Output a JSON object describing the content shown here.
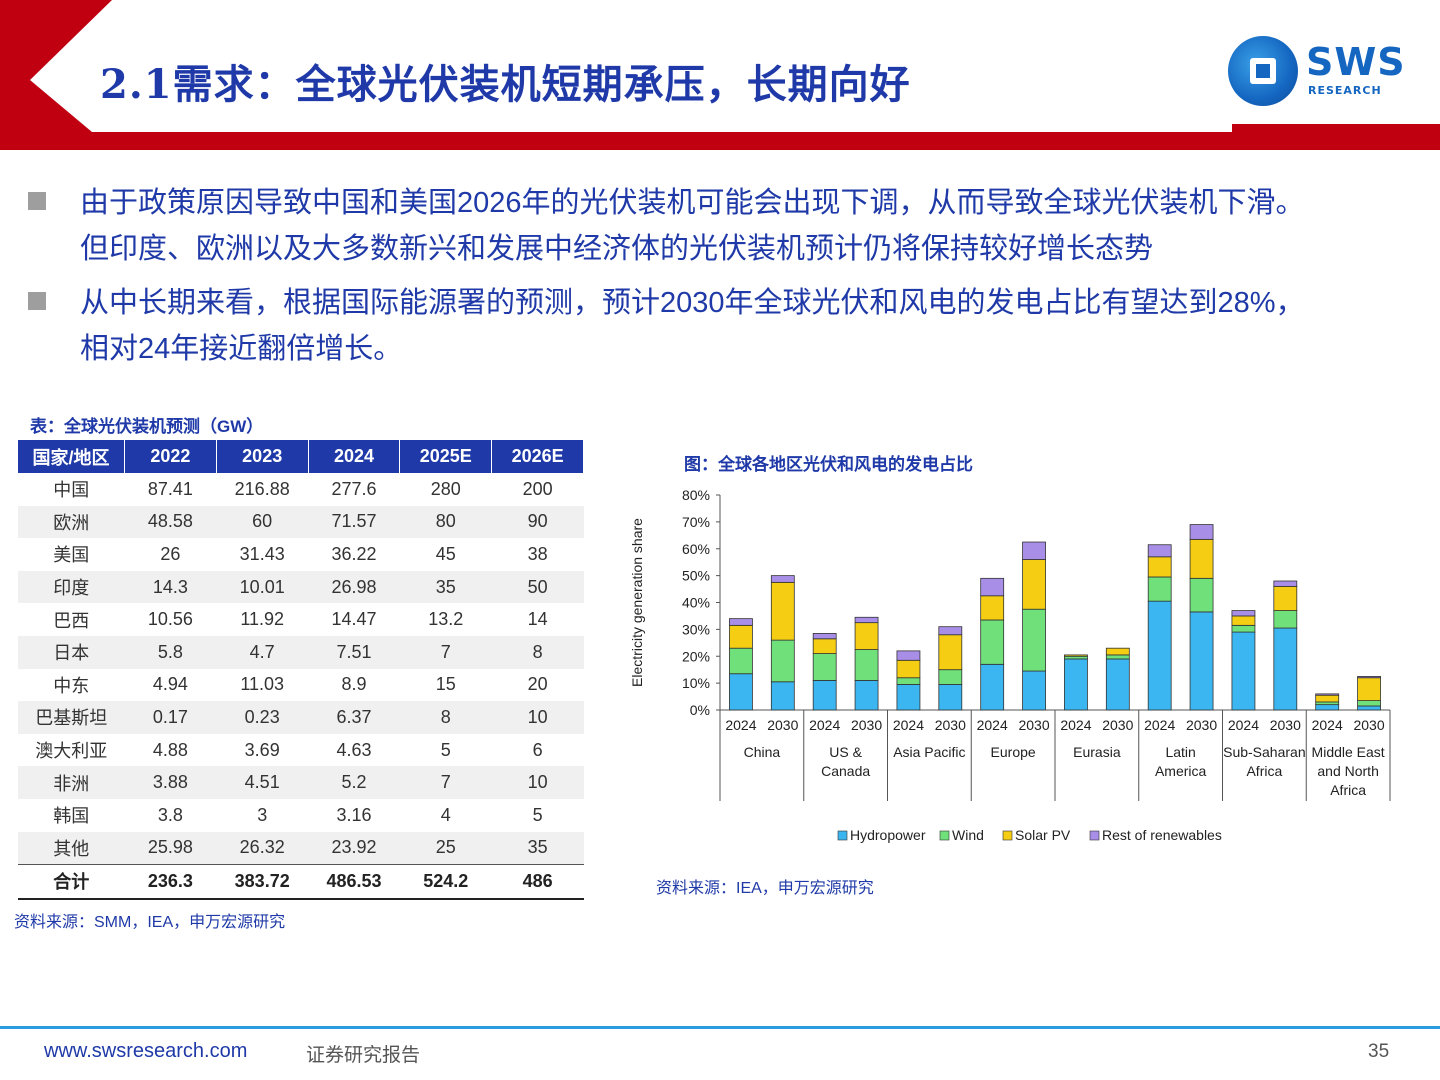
{
  "header": {
    "title": "2.1需求：全球光伏装机短期承压，长期向好",
    "logo_text": "SWS",
    "logo_sub": "RESEARCH",
    "accent_red": "#c00010",
    "accent_blue": "#1f3aa8"
  },
  "bullets": [
    {
      "lines": [
        "由于政策原因导致中国和美国2026年的光伏装机可能会出现下调，从而导致全球光伏装机下滑。",
        "但印度、欧洲以及大多数新兴和发展中经济体的光伏装机预计仍将保持较好增长态势"
      ]
    },
    {
      "lines": [
        "从中长期来看，根据国际能源署的预测，预计2030年全球光伏和风电的发电占比有望达到28%，",
        "相对24年接近翻倍增长。"
      ]
    }
  ],
  "table": {
    "title": "表：全球光伏装机预测（GW）",
    "headers": [
      "国家/地区",
      "2022",
      "2023",
      "2024",
      "2025E",
      "2026E"
    ],
    "rows": [
      [
        "中国",
        "87.41",
        "216.88",
        "277.6",
        "280",
        "200"
      ],
      [
        "欧洲",
        "48.58",
        "60",
        "71.57",
        "80",
        "90"
      ],
      [
        "美国",
        "26",
        "31.43",
        "36.22",
        "45",
        "38"
      ],
      [
        "印度",
        "14.3",
        "10.01",
        "26.98",
        "35",
        "50"
      ],
      [
        "巴西",
        "10.56",
        "11.92",
        "14.47",
        "13.2",
        "14"
      ],
      [
        "日本",
        "5.8",
        "4.7",
        "7.51",
        "7",
        "8"
      ],
      [
        "中东",
        "4.94",
        "11.03",
        "8.9",
        "15",
        "20"
      ],
      [
        "巴基斯坦",
        "0.17",
        "0.23",
        "6.37",
        "8",
        "10"
      ],
      [
        "澳大利亚",
        "4.88",
        "3.69",
        "4.63",
        "5",
        "6"
      ],
      [
        "非洲",
        "3.88",
        "4.51",
        "5.2",
        "7",
        "10"
      ],
      [
        "韩国",
        "3.8",
        "3",
        "3.16",
        "4",
        "5"
      ],
      [
        "其他",
        "25.98",
        "26.32",
        "23.92",
        "25",
        "35"
      ]
    ],
    "total": [
      "合计",
      "236.3",
      "383.72",
      "486.53",
      "524.2",
      "486"
    ],
    "source": "资料来源：SMM，IEA，申万宏源研究"
  },
  "chart": {
    "title": "图：全球各地区光伏和风电的发电占比",
    "source": "资料来源：IEA，申万宏源研究"
  },
  "chart_data": {
    "type": "bar",
    "stacked": true,
    "ylabel": "Electricity generation share",
    "ylim": [
      0,
      80
    ],
    "yticks": [
      "0%",
      "10%",
      "20%",
      "30%",
      "40%",
      "50%",
      "60%",
      "70%",
      "80%"
    ],
    "groups": [
      {
        "label": [
          "China"
        ]
      },
      {
        "label": [
          "US &",
          "Canada"
        ]
      },
      {
        "label": [
          "Asia Pacific"
        ]
      },
      {
        "label": [
          "Europe"
        ]
      },
      {
        "label": [
          "Eurasia"
        ]
      },
      {
        "label": [
          "Latin",
          "America"
        ]
      },
      {
        "label": [
          "Sub-Saharan",
          "Africa"
        ]
      },
      {
        "label": [
          "Middle East",
          "and North",
          "Africa"
        ]
      }
    ],
    "years": [
      "2024",
      "2030"
    ],
    "series": [
      {
        "name": "Hydropower",
        "color": "#3bb6f0",
        "values": [
          13.5,
          10.5,
          11.0,
          11.0,
          9.5,
          9.5,
          17.0,
          14.5,
          19.0,
          19.0,
          40.5,
          36.5,
          29.0,
          30.5,
          2.0,
          1.5
        ]
      },
      {
        "name": "Wind",
        "color": "#6fe07a",
        "values": [
          9.5,
          15.5,
          10.0,
          11.5,
          2.5,
          5.5,
          16.5,
          23.0,
          1.0,
          1.5,
          9.0,
          12.5,
          2.5,
          6.5,
          1.0,
          2.0
        ]
      },
      {
        "name": "Solar PV",
        "color": "#f5cd13",
        "values": [
          8.5,
          21.5,
          5.5,
          10.0,
          6.5,
          13.0,
          9.0,
          18.5,
          0.5,
          2.5,
          7.5,
          14.5,
          3.5,
          9.0,
          2.5,
          8.5
        ]
      },
      {
        "name": "Rest of renewables",
        "color": "#a98ee8",
        "values": [
          2.5,
          2.5,
          2.0,
          2.0,
          3.5,
          3.0,
          6.5,
          6.5,
          0.0,
          0.0,
          4.5,
          5.5,
          2.0,
          2.0,
          0.5,
          0.5
        ]
      }
    ]
  },
  "footer": {
    "url": "www.swsresearch.com",
    "tag": "证券研究报告",
    "page": "35"
  }
}
